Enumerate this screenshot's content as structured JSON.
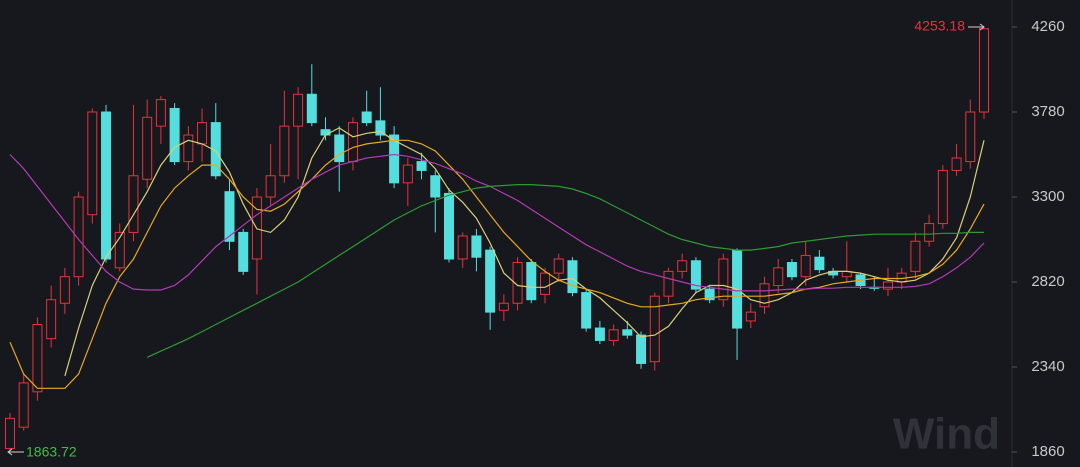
{
  "chart_data": {
    "type": "candlestick",
    "watermark": "Wind",
    "ylim": [
      1860,
      4260
    ],
    "yticks": [
      1860,
      2340,
      2820,
      3300,
      3780,
      4260
    ],
    "grid": false,
    "up_color": "#e8323c",
    "down_color": "#54dede",
    "open": [
      1880,
      2000,
      2200,
      2500,
      2700,
      2850,
      3200,
      3780,
      2900,
      3100,
      3400,
      3700,
      3800,
      3500,
      3600,
      3720,
      3330,
      3100,
      2950,
      3300,
      3420,
      3700,
      3880,
      3680,
      3650,
      3500,
      3780,
      3730,
      3650,
      3380,
      3500,
      3420,
      3320,
      2950,
      3080,
      3000,
      2660,
      2700,
      2930,
      2750,
      2870,
      2940,
      2760,
      2560,
      2490,
      2550,
      2520,
      2370,
      2740,
      2880,
      2940,
      2780,
      2720,
      3000,
      2600,
      2680,
      2800,
      2930,
      2850,
      2960,
      2880,
      2850,
      2860,
      2790,
      2780,
      2820,
      2880,
      3050,
      3150,
      3450,
      3500,
      3780
    ],
    "high": [
      2080,
      2300,
      2620,
      2800,
      2900,
      3330,
      3800,
      3820,
      3150,
      3820,
      3850,
      3870,
      3830,
      3700,
      3800,
      3830,
      3400,
      3120,
      3350,
      3600,
      3900,
      3920,
      4050,
      3750,
      3700,
      3750,
      3900,
      3920,
      3700,
      3520,
      3550,
      3450,
      3350,
      3100,
      3120,
      3020,
      2750,
      2960,
      2950,
      2900,
      2980,
      2960,
      2780,
      2600,
      2580,
      2600,
      2540,
      2760,
      2900,
      2980,
      2960,
      2800,
      2980,
      3010,
      2700,
      2850,
      2950,
      2950,
      3050,
      3000,
      2900,
      3050,
      2870,
      2850,
      2900,
      2900,
      3100,
      3200,
      3480,
      3600,
      3850,
      4253.18
    ],
    "low": [
      1863.72,
      1980,
      2150,
      2450,
      2640,
      2800,
      3150,
      2930,
      2880,
      3050,
      3350,
      3600,
      3480,
      3450,
      3500,
      3400,
      3000,
      2860,
      2750,
      3250,
      3380,
      3400,
      3700,
      3620,
      3330,
      3450,
      3700,
      3620,
      3350,
      3250,
      3400,
      3100,
      2930,
      2900,
      2880,
      2550,
      2600,
      2660,
      2700,
      2700,
      2820,
      2740,
      2540,
      2470,
      2460,
      2500,
      2330,
      2320,
      2700,
      2840,
      2760,
      2700,
      2680,
      2380,
      2560,
      2640,
      2760,
      2830,
      2800,
      2870,
      2840,
      2820,
      2780,
      2770,
      2740,
      2780,
      2840,
      3020,
      3120,
      3420,
      3460,
      3740
    ],
    "close": [
      2050,
      2250,
      2580,
      2720,
      2850,
      3300,
      3780,
      2950,
      3100,
      3420,
      3750,
      3850,
      3500,
      3650,
      3720,
      3420,
      3050,
      2880,
      3300,
      3420,
      3700,
      3880,
      3720,
      3650,
      3500,
      3720,
      3720,
      3650,
      3380,
      3480,
      3450,
      3300,
      2950,
      3080,
      2960,
      2650,
      2700,
      2930,
      2720,
      2870,
      2950,
      2760,
      2560,
      2490,
      2550,
      2520,
      2360,
      2740,
      2880,
      2940,
      2780,
      2720,
      2950,
      2560,
      2650,
      2810,
      2900,
      2850,
      2970,
      2890,
      2860,
      2880,
      2800,
      2785,
      2820,
      2870,
      3050,
      3150,
      3450,
      3520,
      3780,
      4250
    ],
    "series": [
      {
        "color": "#d9cf7a",
        "values": [
          null,
          null,
          null,
          null,
          2290,
          2560,
          2800,
          2960,
          3070,
          3200,
          3330,
          3480,
          3580,
          3620,
          3600,
          3560,
          3440,
          3260,
          3120,
          3100,
          3170,
          3300,
          3520,
          3650,
          3690,
          3640,
          3660,
          3670,
          3620,
          3580,
          3540,
          3460,
          3340,
          3270,
          3180,
          3040,
          2870,
          2800,
          2790,
          2790,
          2830,
          2840,
          2780,
          2730,
          2660,
          2590,
          2510,
          2520,
          2570,
          2670,
          2760,
          2800,
          2800,
          2780,
          2720,
          2700,
          2720,
          2760,
          2830,
          2860,
          2880,
          2880,
          2870,
          2850,
          2830,
          2820,
          2830,
          2870,
          2950,
          3070,
          3300,
          3620
        ]
      },
      {
        "color": "#e8a91e",
        "values": [
          2480,
          2300,
          2220,
          2220,
          2220,
          2300,
          2500,
          2700,
          2850,
          2950,
          3100,
          3250,
          3350,
          3420,
          3480,
          3480,
          3400,
          3300,
          3230,
          3220,
          3260,
          3330,
          3400,
          3480,
          3540,
          3580,
          3600,
          3610,
          3620,
          3620,
          3600,
          3560,
          3480,
          3400,
          3300,
          3200,
          3100,
          3020,
          2940,
          2880,
          2830,
          2800,
          2780,
          2760,
          2730,
          2700,
          2680,
          2680,
          2690,
          2700,
          2720,
          2730,
          2740,
          2740,
          2740,
          2740,
          2750,
          2760,
          2780,
          2790,
          2810,
          2820,
          2830,
          2840,
          2840,
          2840,
          2850,
          2870,
          2920,
          3000,
          3120,
          3260
        ]
      },
      {
        "color": "#b13bb4",
        "values": [
          3540,
          3460,
          3360,
          3260,
          3160,
          3060,
          2970,
          2880,
          2820,
          2780,
          2775,
          2775,
          2800,
          2860,
          2940,
          3020,
          3080,
          3140,
          3200,
          3250,
          3300,
          3350,
          3400,
          3440,
          3480,
          3500,
          3520,
          3530,
          3540,
          3530,
          3510,
          3490,
          3460,
          3430,
          3390,
          3360,
          3320,
          3280,
          3230,
          3180,
          3130,
          3080,
          3030,
          2990,
          2950,
          2910,
          2880,
          2860,
          2840,
          2820,
          2800,
          2790,
          2780,
          2770,
          2770,
          2770,
          2775,
          2780,
          2780,
          2785,
          2785,
          2790,
          2790,
          2790,
          2790,
          2790,
          2795,
          2810,
          2850,
          2900,
          2960,
          3040
        ]
      },
      {
        "color": "#2f9a32",
        "values": [
          null,
          null,
          null,
          null,
          null,
          null,
          null,
          null,
          null,
          null,
          2395,
          2430,
          2465,
          2500,
          2540,
          2580,
          2620,
          2660,
          2700,
          2740,
          2780,
          2820,
          2870,
          2920,
          2970,
          3020,
          3070,
          3120,
          3170,
          3210,
          3250,
          3280,
          3310,
          3330,
          3350,
          3360,
          3365,
          3370,
          3370,
          3365,
          3360,
          3345,
          3320,
          3290,
          3250,
          3210,
          3170,
          3130,
          3090,
          3060,
          3040,
          3020,
          3010,
          3000,
          3000,
          3010,
          3020,
          3040,
          3050,
          3060,
          3070,
          3080,
          3085,
          3090,
          3090,
          3090,
          3090,
          3090,
          3095,
          3095,
          3100,
          3100
        ]
      }
    ]
  }
}
